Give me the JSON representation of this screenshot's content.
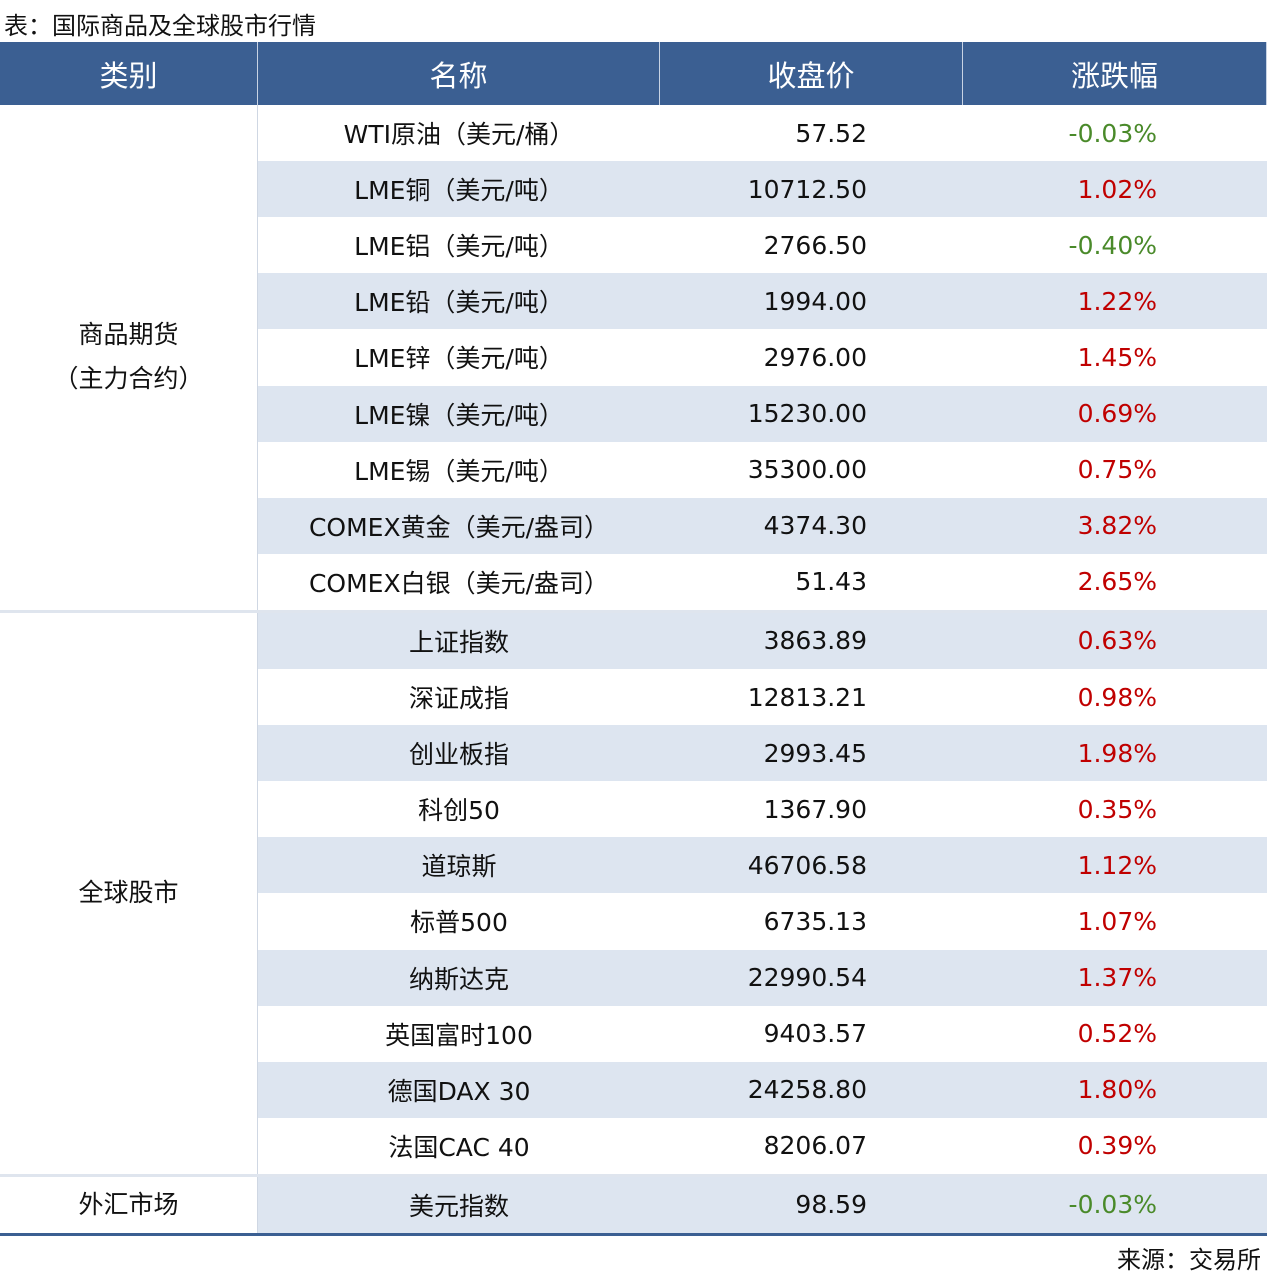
{
  "title": "表：国际商品及全球股市行情",
  "table": {
    "header": [
      "类别",
      "名称",
      "收盘价",
      "涨跌幅"
    ],
    "groups": [
      {
        "category": [
          "商品期货",
          "（主力合约）"
        ],
        "rows": [
          [
            "WTI原油（美元/桶）",
            "57.52",
            "-0.03%"
          ],
          [
            "LME铜（美元/吨）",
            "10712.50",
            "1.02%"
          ],
          [
            "LME铝（美元/吨）",
            "2766.50",
            "-0.40%"
          ],
          [
            "LME铅（美元/吨）",
            "1994.00",
            "1.22%"
          ],
          [
            "LME锌（美元/吨）",
            "2976.00",
            "1.45%"
          ],
          [
            "LME镍（美元/吨）",
            "15230.00",
            "0.69%"
          ],
          [
            "LME锡（美元/吨）",
            "35300.00",
            "0.75%"
          ],
          [
            "COMEX黄金（美元/盎司）",
            "4374.30",
            "3.82%"
          ],
          [
            "COMEX白银（美元/盎司）",
            "51.43",
            "2.65%"
          ]
        ]
      },
      {
        "category": [
          "全球股市"
        ],
        "rows": [
          [
            "上证指数",
            "3863.89",
            "0.63%"
          ],
          [
            "深证成指",
            "12813.21",
            "0.98%"
          ],
          [
            "创业板指",
            "2993.45",
            "1.98%"
          ],
          [
            "科创50",
            "1367.90",
            "0.35%"
          ],
          [
            "道琼斯",
            "46706.58",
            "1.12%"
          ],
          [
            "标普500",
            "6735.13",
            "1.07%"
          ],
          [
            "纳斯达克",
            "22990.54",
            "1.37%"
          ],
          [
            "英国富时100",
            "9403.57",
            "0.52%"
          ],
          [
            "德国DAX 30",
            "24258.80",
            "1.80%"
          ],
          [
            "法国CAC 40",
            "8206.07",
            "0.39%"
          ]
        ]
      },
      {
        "category": [
          "外汇市场"
        ],
        "rows": [
          [
            "美元指数",
            "98.59",
            "-0.03%"
          ]
        ]
      }
    ]
  },
  "source": "来源：交易所"
}
